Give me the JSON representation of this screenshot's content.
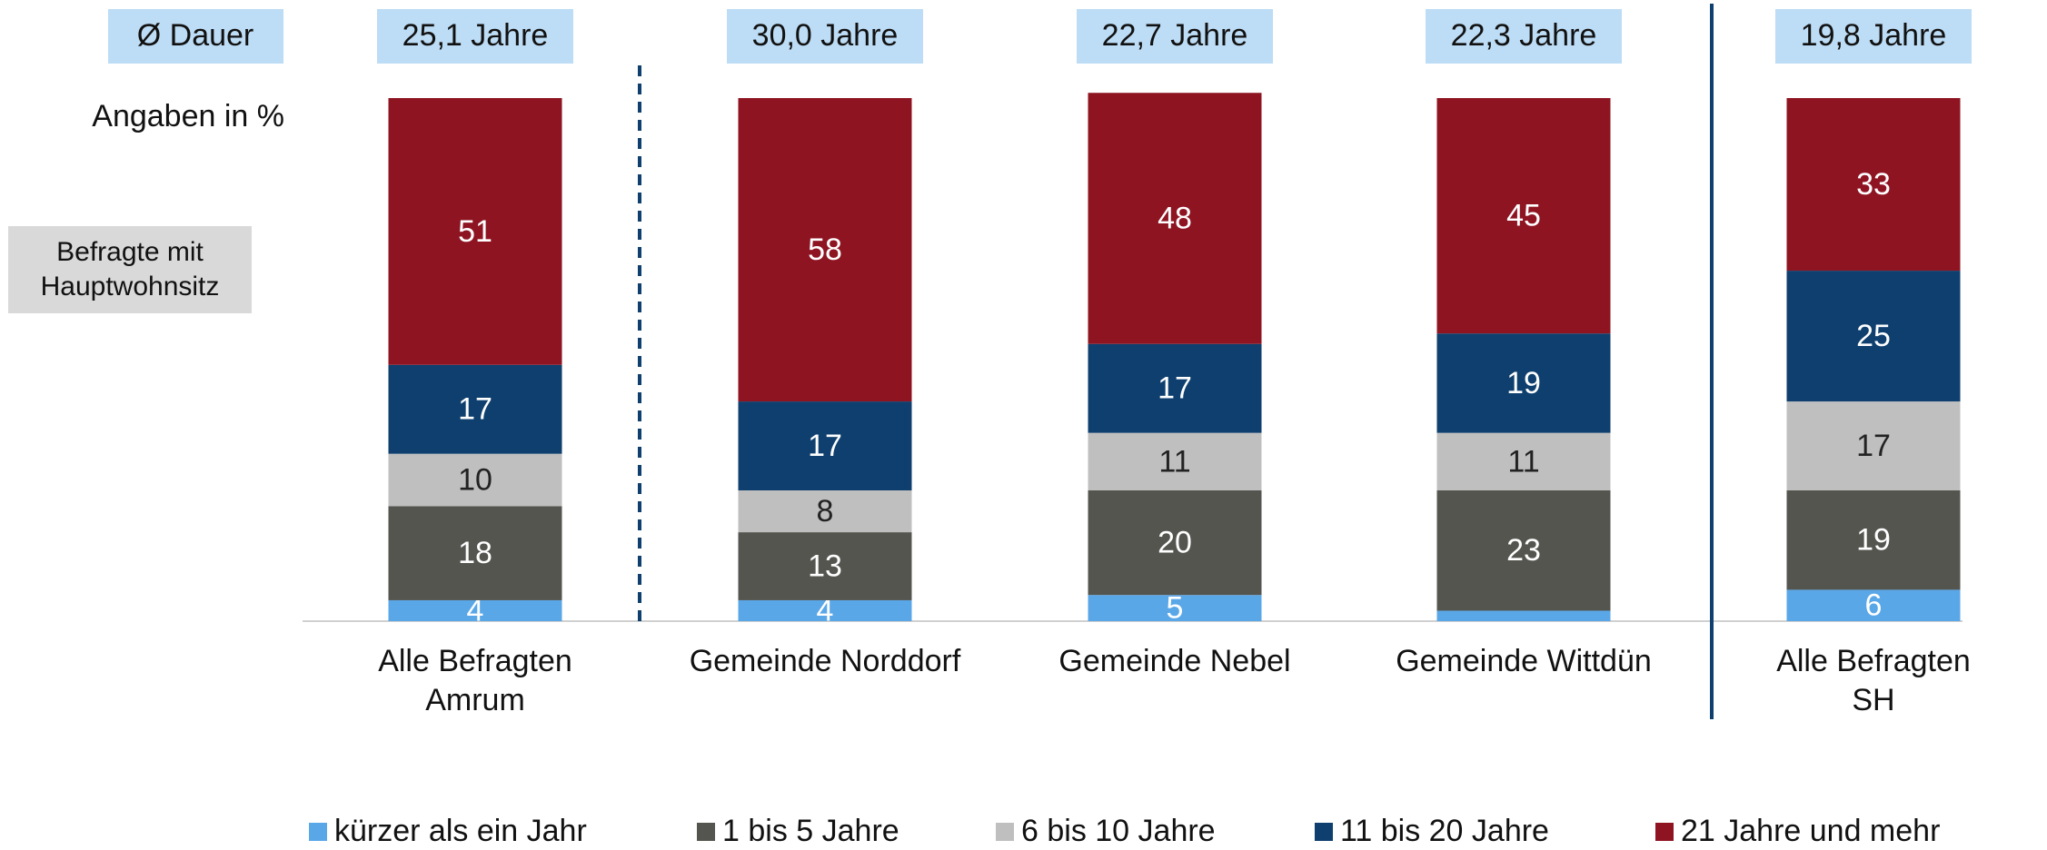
{
  "chart_data": {
    "type": "stacked_bar",
    "duration_label": "Ø Dauer",
    "durations": [
      "25,1 Jahre",
      "30,0 Jahre",
      "22,7 Jahre",
      "22,3 Jahre",
      "19,8 Jahre"
    ],
    "unit_note": "Angaben in %",
    "note": [
      "Befragte mit",
      "Hauptwohnsitz"
    ],
    "categories": [
      [
        "Alle Befragten",
        "Amrum"
      ],
      [
        "Gemeinde Norddorf"
      ],
      [
        "Gemeinde  Nebel"
      ],
      [
        "Gemeinde Wittdün"
      ],
      [
        "Alle Befragten",
        "SH"
      ]
    ],
    "ylim": [
      0,
      100
    ],
    "series": [
      {
        "name": "kürzer als ein Jahr",
        "color": "#5aa7e8",
        "values": [
          4,
          4,
          5,
          2,
          6
        ],
        "value_labels": [
          "4",
          "4",
          "5",
          null,
          "6"
        ]
      },
      {
        "name": "1 bis 5 Jahre",
        "color": "#555550",
        "values": [
          18,
          13,
          20,
          23,
          19
        ]
      },
      {
        "name": "6 bis 10 Jahre",
        "color": "#bfbfbf",
        "values": [
          10,
          8,
          11,
          11,
          17
        ]
      },
      {
        "name": "11 bis 20 Jahre",
        "color": "#0e3f6e",
        "values": [
          17,
          17,
          17,
          19,
          25
        ]
      },
      {
        "name": "21 Jahre und mehr",
        "color": "#8e1422",
        "values": [
          51,
          58,
          48,
          45,
          33
        ]
      }
    ]
  }
}
